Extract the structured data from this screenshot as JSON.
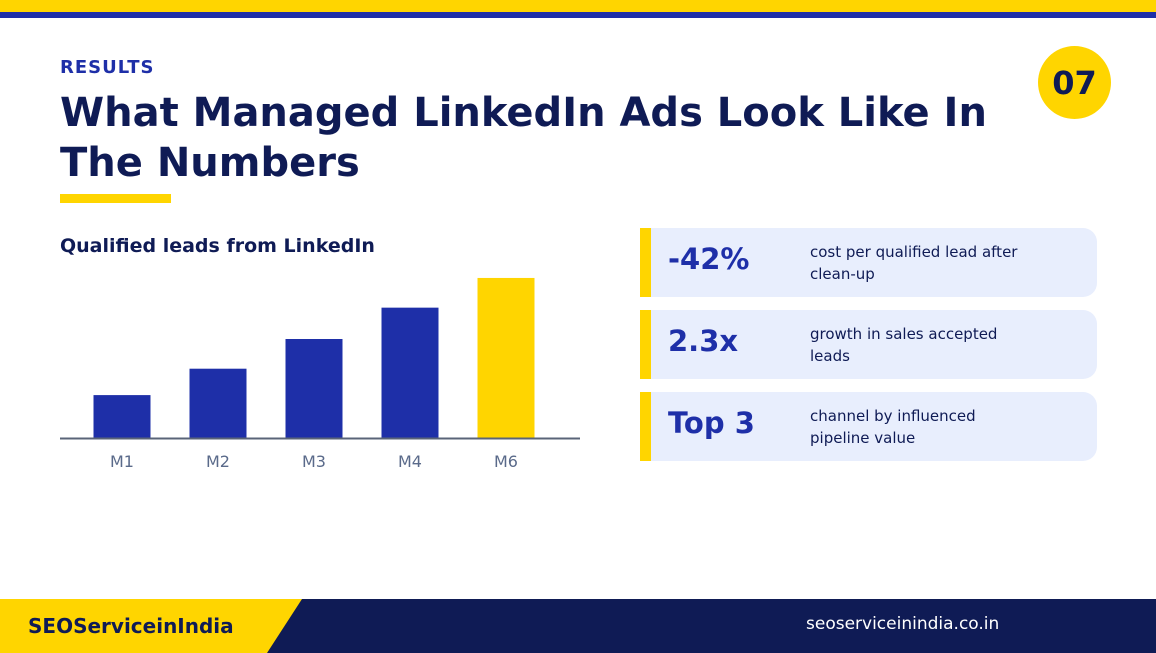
{
  "header": {
    "eyebrow": "RESULTS",
    "title": "What Managed LinkedIn Ads Look Like In The Numbers",
    "slide_number": "07"
  },
  "chart_data": {
    "type": "bar",
    "title": "Qualified leads from LinkedIn",
    "categories": [
      "M1",
      "M2",
      "M3",
      "M4",
      "M6"
    ],
    "values": [
      26,
      42,
      60,
      79,
      97
    ],
    "ylim": [
      0,
      100
    ],
    "highlight_index": 4,
    "colors": {
      "bar": "#1E2FA8",
      "highlight": "#FFD500",
      "axis": "#5A6478",
      "tick_label": "#5A6A8A"
    },
    "grid": false
  },
  "stats": [
    {
      "value": "-42%",
      "desc": "cost per qualified lead after clean-up"
    },
    {
      "value": "2.3x",
      "desc": "growth in sales accepted leads"
    },
    {
      "value": "Top 3",
      "desc": "channel by influenced pipeline value"
    }
  ],
  "footer": {
    "brand": "SEOServiceinIndia",
    "url": "seoserviceinindia.co.in"
  },
  "colors": {
    "navy": "#0F1B55",
    "blue": "#1E2FA8",
    "yellow": "#FFD500",
    "card_bg": "#E8EEFD"
  }
}
